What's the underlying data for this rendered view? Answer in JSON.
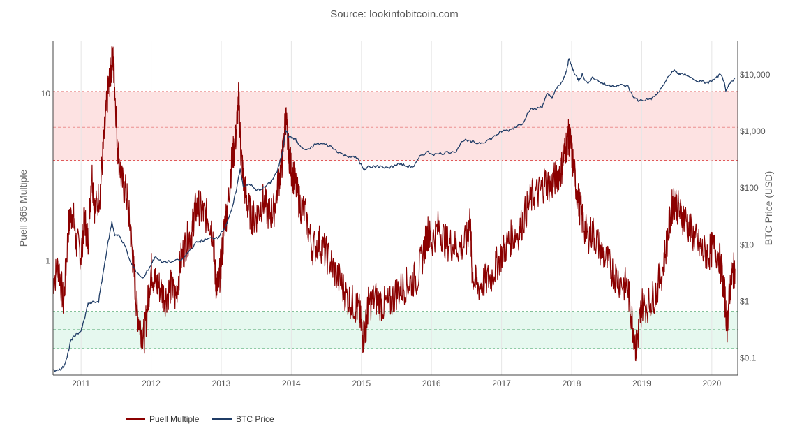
{
  "chart_data": {
    "type": "line",
    "title": "",
    "subtitle": "Source: lookintobitcoin.com",
    "x_axis": {
      "tick_labels": [
        "2011",
        "2012",
        "2013",
        "2014",
        "2015",
        "2016",
        "2017",
        "2018",
        "2019",
        "2020"
      ],
      "range": [
        "2010-08-01",
        "2020-05-15"
      ],
      "grid": true
    },
    "y_left": {
      "title": "Puell 365 Multiple",
      "scale": "log",
      "range": [
        0.27,
        20
      ],
      "tick_values": [
        1,
        10
      ],
      "tick_labels": [
        "1",
        "10"
      ]
    },
    "y_right": {
      "title": "BTC Price (USD)",
      "scale": "log",
      "range": [
        0.05,
        40000
      ],
      "tick_values": [
        0.1,
        1,
        10,
        100,
        1000,
        10000
      ],
      "tick_labels": [
        "$0.1",
        "$1",
        "$10",
        "$100",
        "$1,000",
        "$10,000"
      ]
    },
    "bands": [
      {
        "name": "high zone",
        "color": "#fde2e2",
        "border": "#e05a5a",
        "from": 4,
        "to": 10.3,
        "mid": 6.3
      },
      {
        "name": "low zone",
        "color": "#e6f8ef",
        "border": "#3a9e5c",
        "from": 0.3,
        "to": 0.5,
        "mid": 0.39
      }
    ],
    "legend": {
      "placement": "bottom-left"
    },
    "series": [
      {
        "name": "Puell Multiple",
        "color": "#8b0000",
        "axis": "left",
        "points": [
          [
            2010.6,
            0.75
          ],
          [
            2010.68,
            0.95
          ],
          [
            2010.75,
            0.55
          ],
          [
            2010.82,
            1.6
          ],
          [
            2010.88,
            2.0
          ],
          [
            2010.93,
            1.3
          ],
          [
            2011.0,
            1.1
          ],
          [
            2011.05,
            1.8
          ],
          [
            2011.1,
            1.3
          ],
          [
            2011.15,
            3.5
          ],
          [
            2011.2,
            2.0
          ],
          [
            2011.27,
            2.6
          ],
          [
            2011.33,
            5.5
          ],
          [
            2011.38,
            10
          ],
          [
            2011.42,
            13
          ],
          [
            2011.45,
            17
          ],
          [
            2011.48,
            11
          ],
          [
            2011.52,
            5
          ],
          [
            2011.58,
            3
          ],
          [
            2011.65,
            2.5
          ],
          [
            2011.7,
            1.6
          ],
          [
            2011.75,
            0.9
          ],
          [
            2011.8,
            0.5
          ],
          [
            2011.85,
            0.4
          ],
          [
            2011.9,
            0.35
          ],
          [
            2011.95,
            0.55
          ],
          [
            2012.0,
            0.9
          ],
          [
            2012.05,
            0.75
          ],
          [
            2012.12,
            0.7
          ],
          [
            2012.2,
            0.6
          ],
          [
            2012.28,
            0.7
          ],
          [
            2012.35,
            0.6
          ],
          [
            2012.42,
            1.0
          ],
          [
            2012.5,
            1.3
          ],
          [
            2012.58,
            1.5
          ],
          [
            2012.62,
            2.0
          ],
          [
            2012.68,
            2.1
          ],
          [
            2012.75,
            1.9
          ],
          [
            2012.82,
            1.8
          ],
          [
            2012.88,
            1.5
          ],
          [
            2012.92,
            0.75
          ],
          [
            2012.96,
            0.7
          ],
          [
            2013.0,
            1.0
          ],
          [
            2013.05,
            1.7
          ],
          [
            2013.1,
            2.2
          ],
          [
            2013.15,
            4.0
          ],
          [
            2013.2,
            5.0
          ],
          [
            2013.25,
            9.8
          ],
          [
            2013.28,
            4.5
          ],
          [
            2013.32,
            3.0
          ],
          [
            2013.38,
            2.1
          ],
          [
            2013.45,
            1.8
          ],
          [
            2013.52,
            1.9
          ],
          [
            2013.6,
            2.3
          ],
          [
            2013.68,
            1.9
          ],
          [
            2013.75,
            2.0
          ],
          [
            2013.82,
            3.0
          ],
          [
            2013.87,
            4.0
          ],
          [
            2013.92,
            7.5
          ],
          [
            2013.95,
            5.0
          ],
          [
            2014.0,
            3.5
          ],
          [
            2014.05,
            3.0
          ],
          [
            2014.12,
            2.2
          ],
          [
            2014.2,
            1.9
          ],
          [
            2014.3,
            1.2
          ],
          [
            2014.4,
            1.3
          ],
          [
            2014.5,
            1.1
          ],
          [
            2014.6,
            0.9
          ],
          [
            2014.7,
            0.75
          ],
          [
            2014.8,
            0.6
          ],
          [
            2014.9,
            0.55
          ],
          [
            2014.97,
            0.5
          ],
          [
            2015.02,
            0.35
          ],
          [
            2015.06,
            0.4
          ],
          [
            2015.1,
            0.55
          ],
          [
            2015.2,
            0.6
          ],
          [
            2015.3,
            0.55
          ],
          [
            2015.4,
            0.55
          ],
          [
            2015.5,
            0.65
          ],
          [
            2015.6,
            0.7
          ],
          [
            2015.7,
            0.75
          ],
          [
            2015.8,
            0.8
          ],
          [
            2015.9,
            1.2
          ],
          [
            2015.95,
            1.5
          ],
          [
            2016.0,
            1.3
          ],
          [
            2016.1,
            1.6
          ],
          [
            2016.2,
            1.3
          ],
          [
            2016.3,
            1.25
          ],
          [
            2016.4,
            1.2
          ],
          [
            2016.5,
            1.3
          ],
          [
            2016.55,
            1.8
          ],
          [
            2016.58,
            0.85
          ],
          [
            2016.65,
            0.7
          ],
          [
            2016.75,
            0.75
          ],
          [
            2016.85,
            0.8
          ],
          [
            2016.95,
            1.0
          ],
          [
            2017.05,
            1.2
          ],
          [
            2017.15,
            1.4
          ],
          [
            2017.25,
            1.5
          ],
          [
            2017.35,
            2.0
          ],
          [
            2017.45,
            2.5
          ],
          [
            2017.55,
            2.6
          ],
          [
            2017.62,
            3.0
          ],
          [
            2017.7,
            2.8
          ],
          [
            2017.78,
            3.2
          ],
          [
            2017.85,
            3.5
          ],
          [
            2017.9,
            4.5
          ],
          [
            2017.95,
            5.5
          ],
          [
            2017.98,
            5.2
          ],
          [
            2018.03,
            3.5
          ],
          [
            2018.08,
            2.5
          ],
          [
            2018.15,
            1.8
          ],
          [
            2018.22,
            1.4
          ],
          [
            2018.3,
            1.5
          ],
          [
            2018.4,
            1.2
          ],
          [
            2018.5,
            1.0
          ],
          [
            2018.6,
            0.85
          ],
          [
            2018.7,
            0.75
          ],
          [
            2018.8,
            0.7
          ],
          [
            2018.86,
            0.45
          ],
          [
            2018.92,
            0.3
          ],
          [
            2018.96,
            0.4
          ],
          [
            2019.0,
            0.55
          ],
          [
            2019.1,
            0.55
          ],
          [
            2019.2,
            0.65
          ],
          [
            2019.3,
            0.9
          ],
          [
            2019.38,
            1.5
          ],
          [
            2019.44,
            2.2
          ],
          [
            2019.48,
            2.3
          ],
          [
            2019.55,
            1.9
          ],
          [
            2019.62,
            1.8
          ],
          [
            2019.7,
            1.5
          ],
          [
            2019.78,
            1.3
          ],
          [
            2019.86,
            1.15
          ],
          [
            2019.94,
            1.1
          ],
          [
            2020.02,
            1.2
          ],
          [
            2020.1,
            1.1
          ],
          [
            2020.17,
            0.7
          ],
          [
            2020.22,
            0.42
          ],
          [
            2020.26,
            0.7
          ],
          [
            2020.3,
            0.85
          ],
          [
            2020.33,
            0.9
          ]
        ]
      },
      {
        "name": "BTC Price",
        "color": "#1f3c66",
        "axis": "right",
        "points": [
          [
            2010.6,
            0.06
          ],
          [
            2010.68,
            0.06
          ],
          [
            2010.75,
            0.07
          ],
          [
            2010.8,
            0.1
          ],
          [
            2010.85,
            0.2
          ],
          [
            2010.92,
            0.26
          ],
          [
            2011.0,
            0.3
          ],
          [
            2011.05,
            0.5
          ],
          [
            2011.1,
            0.9
          ],
          [
            2011.15,
            0.95
          ],
          [
            2011.25,
            1.0
          ],
          [
            2011.32,
            3.5
          ],
          [
            2011.38,
            10
          ],
          [
            2011.44,
            25
          ],
          [
            2011.48,
            15
          ],
          [
            2011.55,
            14
          ],
          [
            2011.62,
            10
          ],
          [
            2011.7,
            5
          ],
          [
            2011.78,
            3.5
          ],
          [
            2011.88,
            2.5
          ],
          [
            2012.0,
            4.5
          ],
          [
            2012.05,
            6
          ],
          [
            2012.15,
            5
          ],
          [
            2012.3,
            5
          ],
          [
            2012.45,
            5.5
          ],
          [
            2012.55,
            8
          ],
          [
            2012.65,
            11
          ],
          [
            2012.75,
            12
          ],
          [
            2012.85,
            13
          ],
          [
            2012.95,
            13.5
          ],
          [
            2013.05,
            20
          ],
          [
            2013.15,
            40
          ],
          [
            2013.22,
            100
          ],
          [
            2013.27,
            220
          ],
          [
            2013.32,
            100
          ],
          [
            2013.4,
            120
          ],
          [
            2013.5,
            90
          ],
          [
            2013.6,
            100
          ],
          [
            2013.7,
            125
          ],
          [
            2013.8,
            200
          ],
          [
            2013.87,
            400
          ],
          [
            2013.92,
            1100
          ],
          [
            2013.96,
            800
          ],
          [
            2014.05,
            750
          ],
          [
            2014.12,
            550
          ],
          [
            2014.22,
            450
          ],
          [
            2014.35,
            600
          ],
          [
            2014.45,
            600
          ],
          [
            2014.55,
            550
          ],
          [
            2014.65,
            450
          ],
          [
            2014.75,
            380
          ],
          [
            2014.85,
            360
          ],
          [
            2014.95,
            330
          ],
          [
            2015.04,
            200
          ],
          [
            2015.1,
            240
          ],
          [
            2015.25,
            240
          ],
          [
            2015.4,
            230
          ],
          [
            2015.55,
            270
          ],
          [
            2015.65,
            240
          ],
          [
            2015.75,
            240
          ],
          [
            2015.85,
            380
          ],
          [
            2015.95,
            430
          ],
          [
            2016.05,
            390
          ],
          [
            2016.2,
            420
          ],
          [
            2016.35,
            450
          ],
          [
            2016.45,
            700
          ],
          [
            2016.55,
            660
          ],
          [
            2016.65,
            620
          ],
          [
            2016.75,
            650
          ],
          [
            2016.85,
            740
          ],
          [
            2016.95,
            900
          ],
          [
            2017.0,
            1000
          ],
          [
            2017.1,
            1050
          ],
          [
            2017.2,
            1200
          ],
          [
            2017.3,
            1400
          ],
          [
            2017.4,
            2400
          ],
          [
            2017.5,
            2500
          ],
          [
            2017.58,
            2800
          ],
          [
            2017.65,
            4500
          ],
          [
            2017.72,
            4000
          ],
          [
            2017.8,
            6000
          ],
          [
            2017.88,
            8000
          ],
          [
            2017.92,
            11000
          ],
          [
            2017.96,
            19000
          ],
          [
            2018.0,
            14000
          ],
          [
            2018.05,
            10000
          ],
          [
            2018.1,
            8000
          ],
          [
            2018.15,
            10000
          ],
          [
            2018.22,
            7000
          ],
          [
            2018.3,
            9000
          ],
          [
            2018.4,
            7500
          ],
          [
            2018.5,
            6500
          ],
          [
            2018.6,
            6400
          ],
          [
            2018.7,
            6500
          ],
          [
            2018.8,
            6300
          ],
          [
            2018.88,
            4000
          ],
          [
            2018.95,
            3500
          ],
          [
            2019.05,
            3600
          ],
          [
            2019.15,
            3800
          ],
          [
            2019.25,
            5000
          ],
          [
            2019.35,
            8000
          ],
          [
            2019.45,
            12000
          ],
          [
            2019.5,
            11000
          ],
          [
            2019.55,
            10000
          ],
          [
            2019.65,
            10000
          ],
          [
            2019.75,
            8000
          ],
          [
            2019.85,
            7500
          ],
          [
            2019.95,
            7200
          ],
          [
            2020.05,
            8500
          ],
          [
            2020.12,
            10000
          ],
          [
            2020.17,
            8000
          ],
          [
            2020.2,
            5000
          ],
          [
            2020.25,
            6800
          ],
          [
            2020.33,
            8800
          ]
        ]
      }
    ]
  }
}
